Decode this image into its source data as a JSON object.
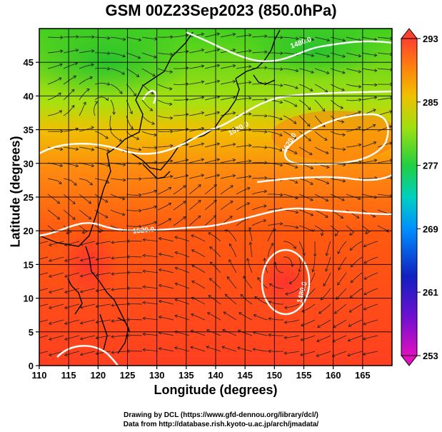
{
  "title": "GSM 00Z23Sep2023 (850.0hPa)",
  "xlabel": "Longitude (degrees)",
  "ylabel": "Latitude (degrees)",
  "credits": {
    "line1": "Drawing by DCL (https://www.gfd-dennou.org/library/dcl/)",
    "line2": "Data from http://database.rish.kyoto-u.ac.jp/arch/jmadata/"
  },
  "chart_data": {
    "type": "heatmap",
    "xlim": [
      110,
      170
    ],
    "ylim": [
      0,
      50
    ],
    "x_ticks": [
      110,
      115,
      120,
      125,
      130,
      135,
      140,
      145,
      150,
      155,
      160,
      165
    ],
    "y_ticks": [
      0,
      5,
      10,
      15,
      20,
      25,
      30,
      35,
      40,
      45
    ],
    "colorbar": {
      "min": 253,
      "max": 293,
      "tick_labels": [
        293,
        285,
        277,
        269,
        261,
        253
      ]
    },
    "contour_labels": [
      {
        "text": "1480.0",
        "lon": 156,
        "lat": 47
      },
      {
        "text": "1520.0",
        "lon": 143,
        "lat": 35
      },
      {
        "text": "1520.0",
        "lon": 153,
        "lat": 33
      },
      {
        "text": "1520.0",
        "lon": 129,
        "lat": 19
      },
      {
        "text": "1480.0",
        "lon": 153,
        "lat": 13
      }
    ],
    "grid": true
  }
}
